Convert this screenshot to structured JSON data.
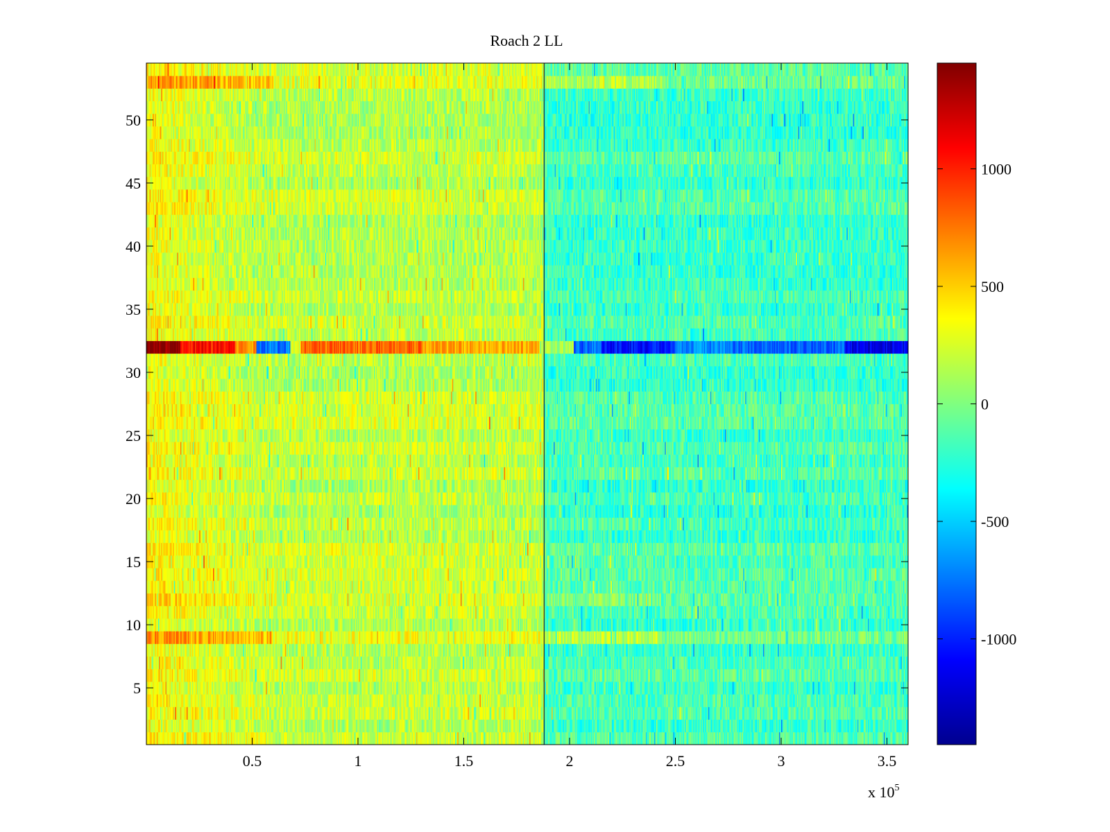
{
  "chart_data": {
    "type": "heatmap",
    "title": "Roach 2 LL",
    "xlabel": "",
    "ylabel": "",
    "x_multiplier_label": "x 10",
    "x_multiplier_exponent": "5",
    "xlim": [
      0,
      360000
    ],
    "ylim": [
      0.5,
      54.5
    ],
    "x_ticks": [
      {
        "value": 50000,
        "label": "0.5"
      },
      {
        "value": 100000,
        "label": "1"
      },
      {
        "value": 150000,
        "label": "1.5"
      },
      {
        "value": 200000,
        "label": "2"
      },
      {
        "value": 250000,
        "label": "2.5"
      },
      {
        "value": 300000,
        "label": "3"
      },
      {
        "value": 350000,
        "label": "3.5"
      }
    ],
    "y_ticks": [
      {
        "value": 5,
        "label": "5"
      },
      {
        "value": 10,
        "label": "10"
      },
      {
        "value": 15,
        "label": "15"
      },
      {
        "value": 20,
        "label": "20"
      },
      {
        "value": 25,
        "label": "25"
      },
      {
        "value": 30,
        "label": "30"
      },
      {
        "value": 35,
        "label": "35"
      },
      {
        "value": 40,
        "label": "40"
      },
      {
        "value": 45,
        "label": "45"
      },
      {
        "value": 50,
        "label": "50"
      }
    ],
    "colorbar": {
      "colormap": "jet",
      "range": [
        -1450,
        1450
      ],
      "ticks": [
        {
          "value": 1000,
          "label": "1000"
        },
        {
          "value": 500,
          "label": "500"
        },
        {
          "value": 0,
          "label": "0"
        },
        {
          "value": -500,
          "label": "-500"
        },
        {
          "value": -1000,
          "label": "-1000"
        }
      ]
    },
    "rows": 54,
    "x_extent": 360000,
    "left_segment_end": 188000,
    "vertical_line_x": 188000,
    "level_left": 180,
    "level_right": -170,
    "noise_amplitude": 200,
    "row_bias": {
      "1": 60,
      "9": 320,
      "12": 140,
      "18": 40,
      "32": 950,
      "53": 320
    },
    "anomaly_row": {
      "row": 32,
      "segments": [
        {
          "x": [
            0,
            16000
          ],
          "value": 1450
        },
        {
          "x": [
            16000,
            42000
          ],
          "value": 1050
        },
        {
          "x": [
            42000,
            52000
          ],
          "value": 650
        },
        {
          "x": [
            52000,
            68000
          ],
          "value": -750
        },
        {
          "x": [
            68000,
            73000
          ],
          "value": 250
        },
        {
          "x": [
            73000,
            130000
          ],
          "value": 800
        },
        {
          "x": [
            130000,
            186000
          ],
          "value": 600
        },
        {
          "x": [
            186000,
            202000
          ],
          "value": 100
        },
        {
          "x": [
            202000,
            215000
          ],
          "value": -800
        },
        {
          "x": [
            215000,
            250000
          ],
          "value": -1050
        },
        {
          "x": [
            250000,
            275000
          ],
          "value": -700
        },
        {
          "x": [
            275000,
            330000
          ],
          "value": -800
        },
        {
          "x": [
            330000,
            360000
          ],
          "value": -1150
        }
      ]
    }
  }
}
